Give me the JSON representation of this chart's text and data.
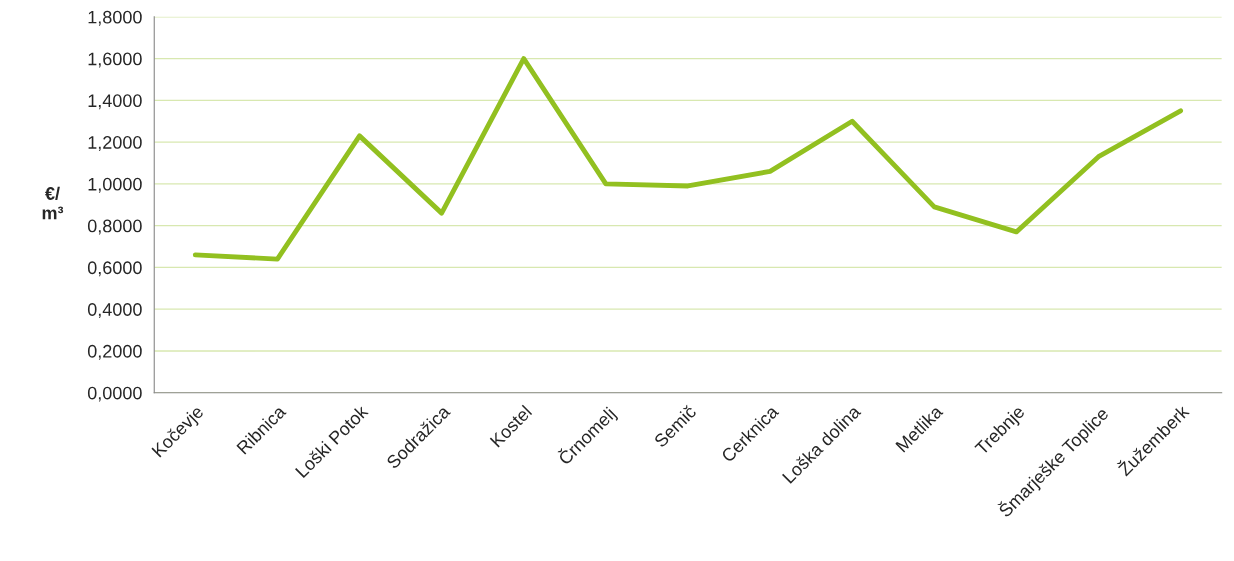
{
  "chart_data": {
    "type": "line",
    "ylabel": "€/\nm³",
    "categories": [
      "Kočevje",
      "Ribnica",
      "Loški Potok",
      "Sodražica",
      "Kostel",
      "Črnomelj",
      "Semič",
      "Cerknica",
      "Loška dolina",
      "Metlika",
      "Trebnje",
      "Šmarješke Toplice",
      "Žužemberk"
    ],
    "series": [
      {
        "color": "#92c020",
        "values": [
          0.66,
          0.64,
          1.23,
          0.86,
          1.6,
          1.0,
          0.99,
          1.06,
          1.3,
          0.89,
          0.77,
          1.13,
          1.35
        ]
      }
    ],
    "ylim": [
      0,
      1.8
    ],
    "yticks": [
      {
        "value": 0,
        "label": "0,0000"
      },
      {
        "value": 0.2,
        "label": "0,2000"
      },
      {
        "value": 0.4,
        "label": "0,4000"
      },
      {
        "value": 0.6,
        "label": "0,6000"
      },
      {
        "value": 0.8,
        "label": "0,8000"
      },
      {
        "value": 1.0,
        "label": "1,0000"
      },
      {
        "value": 1.2,
        "label": "1,2000"
      },
      {
        "value": 1.4,
        "label": "1,4000"
      },
      {
        "value": 1.6,
        "label": "1,6000"
      },
      {
        "value": 1.8,
        "label": "1,8000"
      }
    ],
    "grid": "y",
    "marker": "none",
    "line_style": "solid"
  }
}
